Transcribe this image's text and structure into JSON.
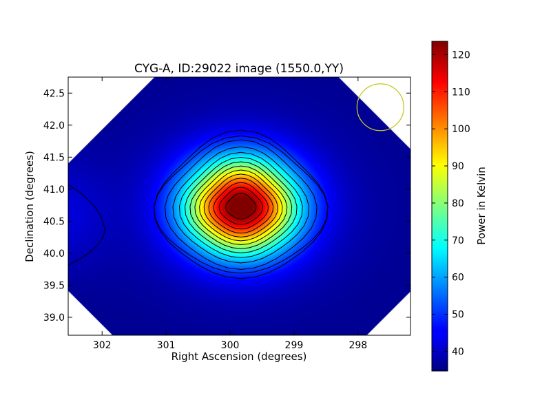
{
  "chart_data": {
    "type": "heatmap",
    "title": "CYG-A, ID:29022 image (1550.0,YY)",
    "xlabel": "Right Ascension (degrees)",
    "ylabel": "Declination (degrees)",
    "x_ticks": [
      "302",
      "301",
      "300",
      "299",
      "298"
    ],
    "x_tick_values": [
      302,
      301,
      300,
      299,
      298
    ],
    "y_ticks": [
      "39.0",
      "39.5",
      "40.0",
      "40.5",
      "41.0",
      "41.5",
      "42.0",
      "42.5"
    ],
    "y_tick_values": [
      39.0,
      39.5,
      40.0,
      40.5,
      41.0,
      41.5,
      42.0,
      42.5
    ],
    "xlim": [
      302.53,
      297.18
    ],
    "ylim": [
      38.72,
      42.75
    ],
    "peak": {
      "ra": 299.83,
      "dec": 40.73,
      "value": 123
    },
    "background_value": 36,
    "sidelobe": {
      "ra": 302.6,
      "dec": 40.6,
      "value": 42
    },
    "contours": 14,
    "colormap": "jet",
    "colorbar": {
      "label": "Power in Kelvin",
      "ticks": [
        "40",
        "50",
        "60",
        "70",
        "80",
        "90",
        "100",
        "110",
        "120"
      ],
      "tick_values": [
        40,
        50,
        60,
        70,
        80,
        90,
        100,
        110,
        120
      ],
      "range": [
        34.7,
        123.6
      ]
    },
    "beam_marker": {
      "shape": "circle",
      "ra": 297.65,
      "dec": 42.28,
      "color": "#c8c81e"
    }
  }
}
